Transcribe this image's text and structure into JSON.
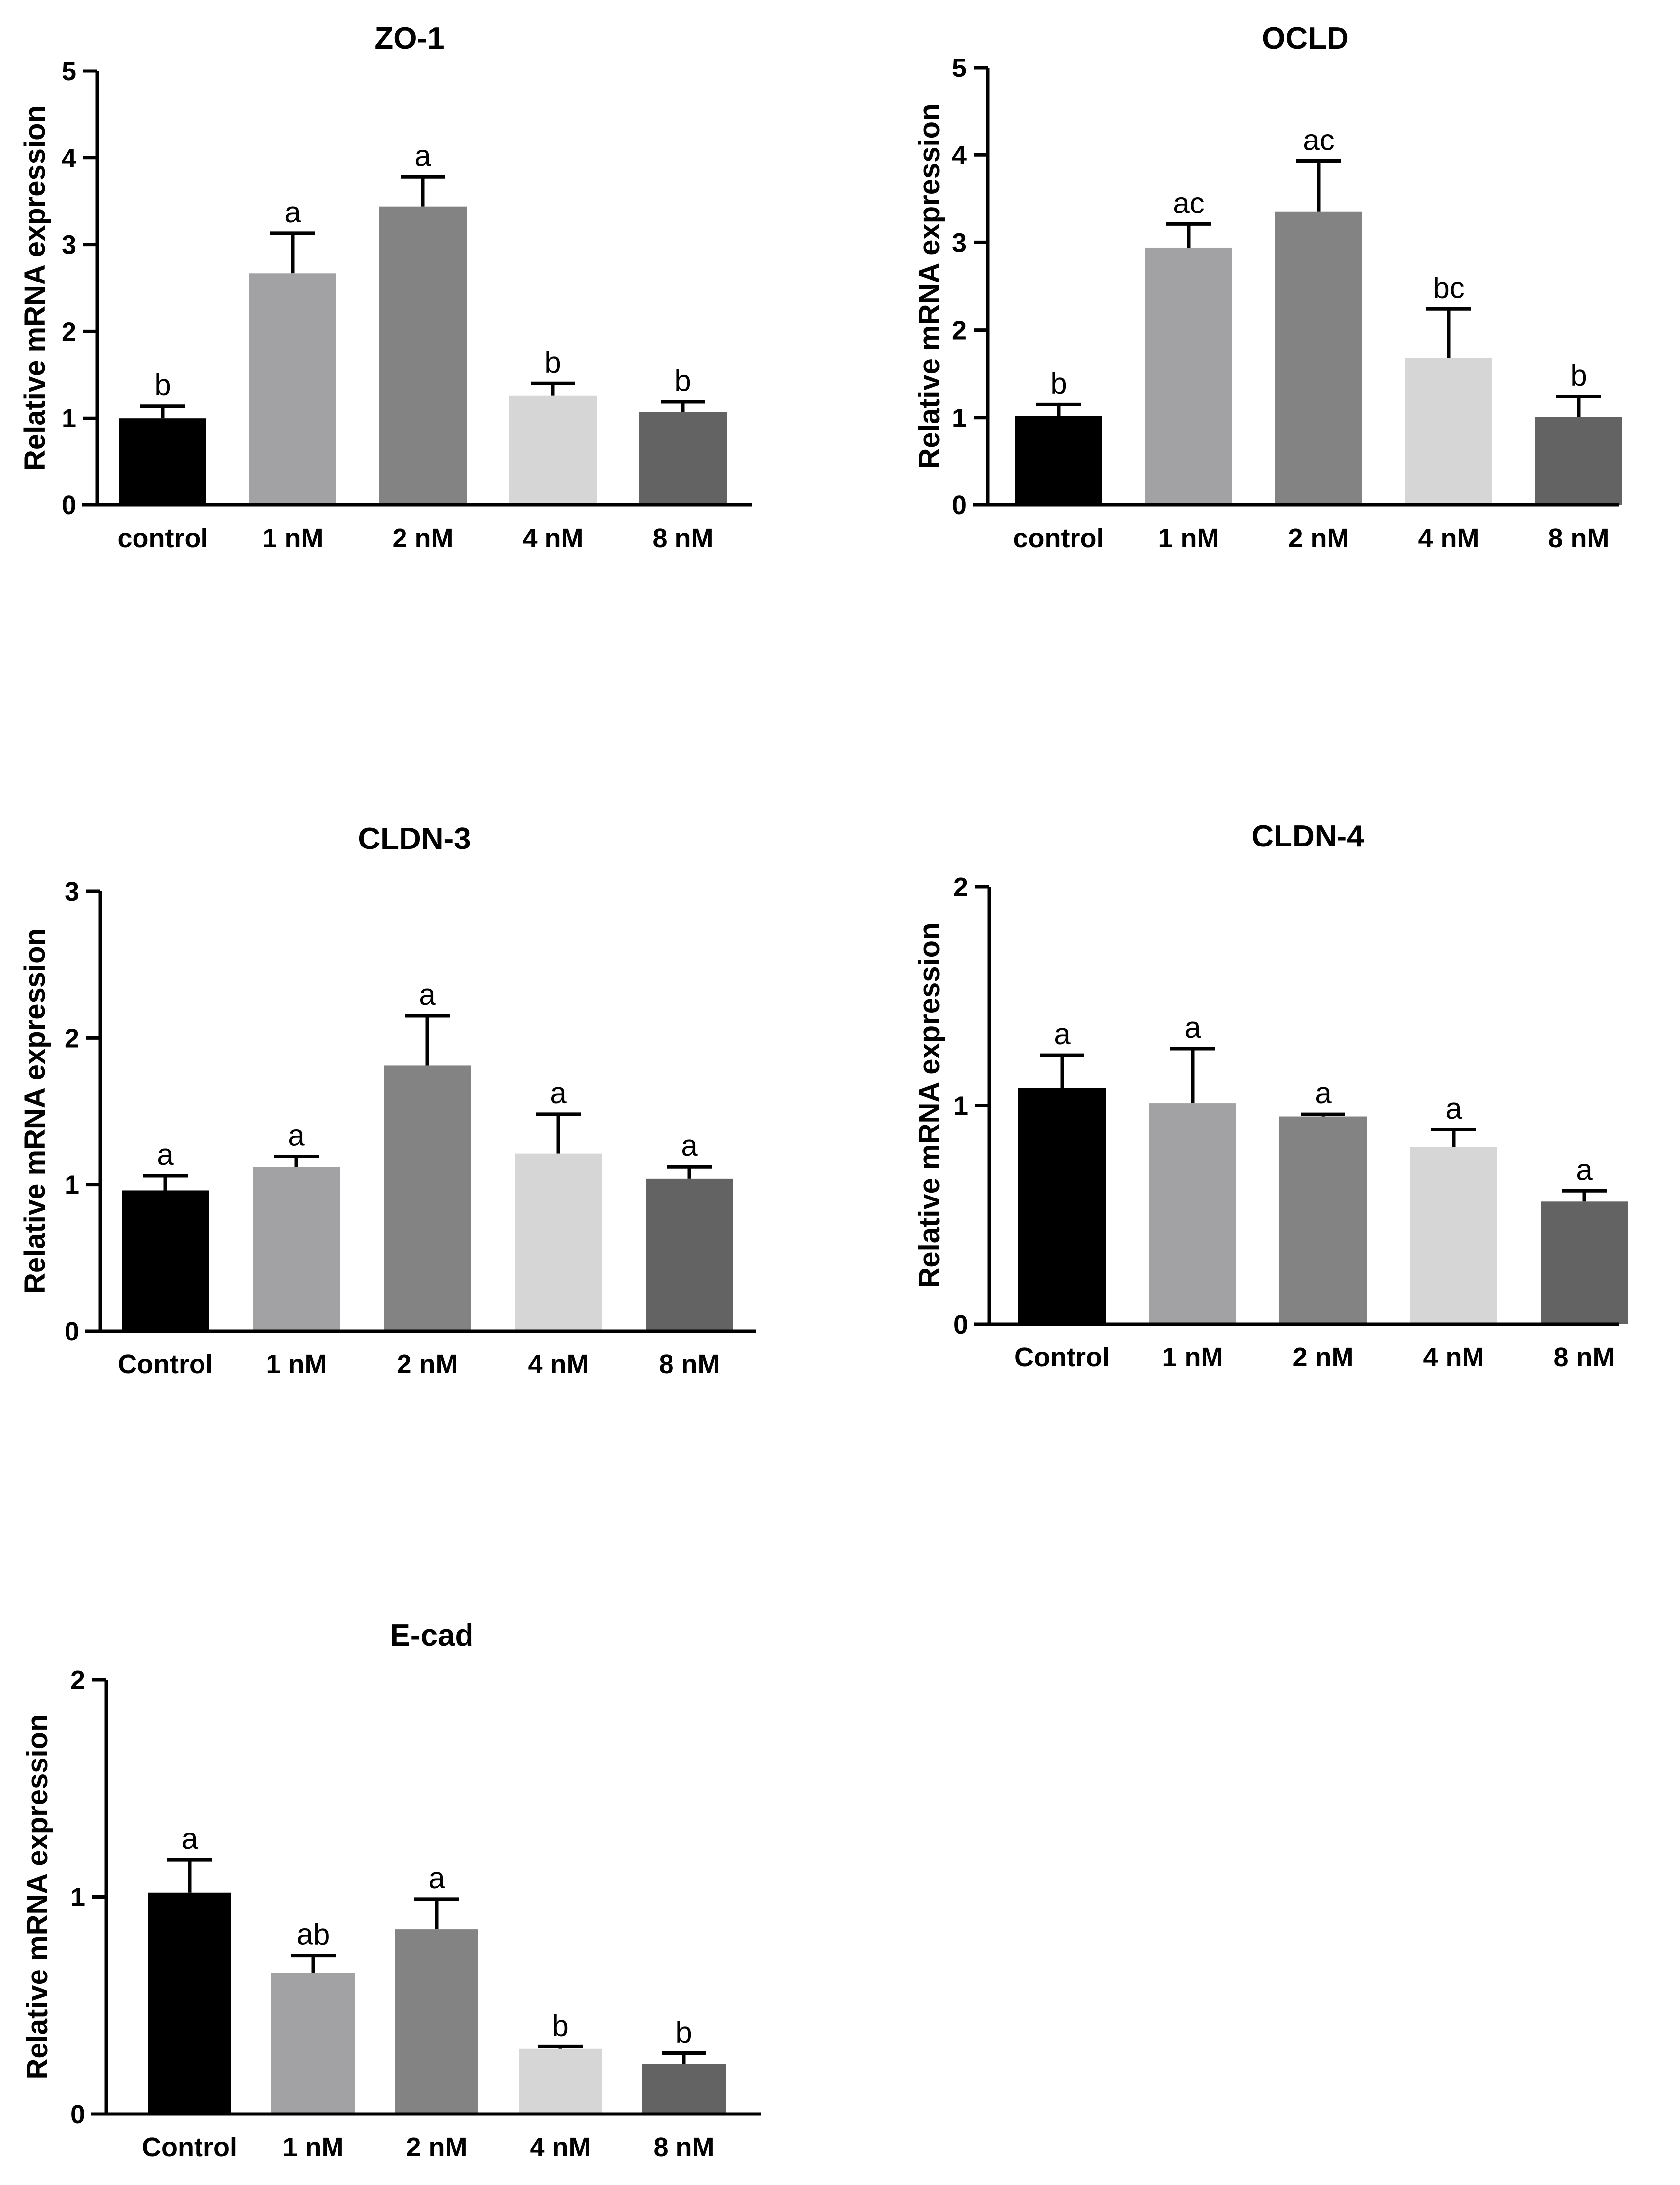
{
  "figure": {
    "bar_colors": [
      "#000000",
      "#a2a2a5",
      "#838383",
      "#d6d6d6",
      "#636363"
    ]
  },
  "chart_data": [
    {
      "type": "bar",
      "title": "ZO-1",
      "ylabel": "Relative mRNA expression",
      "xlabel": "",
      "ylim": [
        0,
        5
      ],
      "yticks": [
        0,
        1,
        2,
        3,
        4,
        5
      ],
      "grid": false,
      "categories": [
        "control",
        "1 nM",
        "2 nM",
        "4 nM",
        "8 nM"
      ],
      "values": [
        1.0,
        2.67,
        3.44,
        1.26,
        1.07
      ],
      "errors": [
        0.14,
        0.46,
        0.34,
        0.14,
        0.12
      ],
      "significance": [
        "b",
        "a",
        "a",
        "b",
        "b"
      ]
    },
    {
      "type": "bar",
      "title": "OCLD",
      "ylabel": "Relative mRNA expression",
      "xlabel": "",
      "ylim": [
        0,
        5
      ],
      "yticks": [
        0,
        1,
        2,
        3,
        4,
        5
      ],
      "grid": false,
      "categories": [
        "control",
        "1 nM",
        "2 nM",
        "4 nM",
        "8 nM"
      ],
      "values": [
        1.02,
        2.94,
        3.35,
        1.68,
        1.01
      ],
      "errors": [
        0.13,
        0.27,
        0.58,
        0.56,
        0.23
      ],
      "significance": [
        "b",
        "ac",
        "ac",
        "bc",
        "b"
      ]
    },
    {
      "type": "bar",
      "title": "CLDN-3",
      "ylabel": "Relative mRNA expression",
      "xlabel": "",
      "ylim": [
        0,
        3
      ],
      "yticks": [
        0,
        1,
        2,
        3
      ],
      "grid": false,
      "categories": [
        "Control",
        "1 nM",
        "2 nM",
        "4 nM",
        "8 nM"
      ],
      "values": [
        0.96,
        1.12,
        1.81,
        1.21,
        1.04
      ],
      "errors": [
        0.1,
        0.07,
        0.34,
        0.27,
        0.08
      ],
      "significance": [
        "a",
        "a",
        "a",
        "a",
        "a"
      ]
    },
    {
      "type": "bar",
      "title": "CLDN-4",
      "ylabel": "Relative mRNA expression",
      "xlabel": "",
      "ylim": [
        0,
        2
      ],
      "yticks": [
        0,
        1,
        2
      ],
      "grid": false,
      "categories": [
        "Control",
        "1 nM",
        "2 nM",
        "4 nM",
        "8 nM"
      ],
      "values": [
        1.08,
        1.01,
        0.95,
        0.81,
        0.56
      ],
      "errors": [
        0.15,
        0.25,
        0.01,
        0.08,
        0.05
      ],
      "significance": [
        "a",
        "a",
        "a",
        "a",
        "a"
      ]
    },
    {
      "type": "bar",
      "title": "E-cad",
      "ylabel": "Relative mRNA expression",
      "xlabel": "",
      "ylim": [
        0,
        2
      ],
      "yticks": [
        0,
        1,
        2
      ],
      "grid": false,
      "categories": [
        "Control",
        "1 nM",
        "2 nM",
        "4 nM",
        "8 nM"
      ],
      "values": [
        1.02,
        0.65,
        0.85,
        0.3,
        0.23
      ],
      "errors": [
        0.15,
        0.08,
        0.14,
        0.01,
        0.05
      ],
      "significance": [
        "a",
        "ab",
        "a",
        "b",
        "b"
      ]
    }
  ]
}
